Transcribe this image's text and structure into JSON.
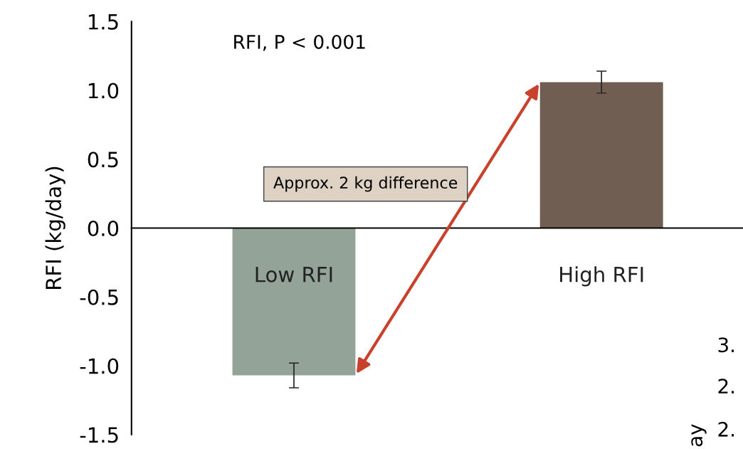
{
  "chart_data": {
    "type": "bar",
    "ylabel": "RFI (kg/day)",
    "categories": [
      "Low RFI",
      "High RFI"
    ],
    "values": [
      -1.07,
      1.06
    ],
    "colors": [
      "#94a398",
      "#715e53"
    ],
    "errors": [
      0.09,
      0.08
    ],
    "ylim": [
      -1.5,
      1.5
    ],
    "yticks": [
      {
        "value": -1.5,
        "label": "-1.5"
      },
      {
        "value": -1.0,
        "label": "-1.0"
      },
      {
        "value": -0.5,
        "label": "-0.5"
      },
      {
        "value": 0.0,
        "label": "0.0"
      },
      {
        "value": 0.5,
        "label": "0.5"
      },
      {
        "value": 1.0,
        "label": "1.0"
      },
      {
        "value": 1.5,
        "label": "1.5"
      }
    ],
    "tick_labels": "y",
    "grid": false,
    "annotations": [
      "RFI, P < 0.001",
      "Approx. 2 kg difference",
      "3.",
      "2.",
      "2.",
      "ay"
    ]
  }
}
